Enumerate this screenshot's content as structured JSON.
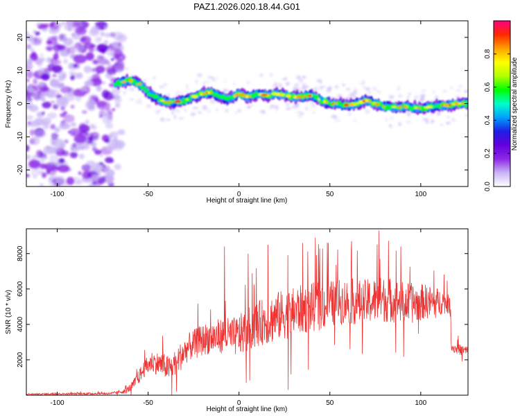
{
  "title": "PAZ1.2026.020.18.44.G01",
  "chart_data": [
    {
      "type": "heatmap",
      "name": "spectrogram",
      "xlabel": "Height of straight line (km)",
      "ylabel": "Frequency (Hz)",
      "xlim": [
        -117,
        126
      ],
      "ylim": [
        -25,
        25
      ],
      "x_ticks": [
        -100,
        -50,
        0,
        50,
        100
      ],
      "y_ticks": [
        -20,
        -10,
        0,
        10,
        20
      ],
      "ridge": {
        "x": [
          -68,
          -60,
          -55,
          -50,
          -45,
          -40,
          -35,
          -30,
          -25,
          -20,
          -15,
          -10,
          -5,
          0,
          5,
          10,
          15,
          20,
          25,
          30,
          35,
          40,
          45,
          50,
          55,
          60,
          65,
          70,
          75,
          80,
          85,
          90,
          95,
          100,
          105,
          110,
          115,
          120,
          126
        ],
        "freq_hz": [
          6,
          7,
          6,
          3.5,
          1.5,
          0.5,
          0.5,
          1,
          2,
          3,
          3.5,
          2,
          1.5,
          3,
          2,
          3,
          2.5,
          3,
          2.5,
          2,
          2,
          2.5,
          1,
          0,
          0,
          -0.5,
          0,
          1,
          0,
          -1,
          -1,
          -1,
          -1,
          -1.5,
          -1,
          -0.5,
          -0.5,
          0,
          0
        ]
      },
      "noise_region_x": [
        -117,
        -64
      ],
      "colorbar": {
        "label": "Normalized spectral amplitude",
        "range": [
          0,
          1
        ],
        "ticks": [
          "0.0",
          "0.2",
          "0.4",
          "0.6",
          "0.8"
        ],
        "colors": [
          "#ffffff",
          "#c8b4f5",
          "#8c28e6",
          "#6400dc",
          "#1e1ee6",
          "#00a0ff",
          "#00ffc8",
          "#00ff00",
          "#b4ff00",
          "#ffff00",
          "#ffa000",
          "#ff2800",
          "#ff0080"
        ]
      }
    },
    {
      "type": "line",
      "name": "snr",
      "xlabel": "Height of straight line (km)",
      "ylabel": "SNR (10 * v/v)",
      "xlim": [
        -117,
        126
      ],
      "ylim": [
        0,
        9400
      ],
      "x_ticks": [
        -100,
        -50,
        0,
        50,
        100
      ],
      "y_ticks": [
        2000,
        4000,
        6000,
        8000
      ],
      "color": "#ee3333",
      "envelope": {
        "x": [
          -117,
          -70,
          -62,
          -58,
          -52,
          -48,
          -42,
          -38,
          -32,
          -28,
          -22,
          -18,
          -12,
          -8,
          -2,
          2,
          8,
          12,
          18,
          22,
          28,
          32,
          38,
          42,
          48,
          52,
          58,
          62,
          68,
          72,
          78,
          82,
          88,
          92,
          98,
          102,
          108,
          112,
          116,
          117,
          120,
          126
        ],
        "mean": [
          60,
          100,
          250,
          600,
          1500,
          1900,
          1700,
          1500,
          2200,
          2700,
          3000,
          3200,
          3300,
          3400,
          3300,
          3500,
          3900,
          4100,
          4300,
          4500,
          4600,
          4800,
          4900,
          5000,
          5100,
          5200,
          5300,
          5300,
          5200,
          5300,
          5400,
          5400,
          5300,
          5200,
          5200,
          5300,
          5200,
          5300,
          5100,
          2700,
          2600,
          2500
        ],
        "spread": [
          40,
          60,
          150,
          300,
          500,
          600,
          700,
          700,
          800,
          800,
          900,
          900,
          1000,
          1000,
          1100,
          1200,
          1300,
          1300,
          1400,
          1400,
          1400,
          1400,
          1400,
          1400,
          1400,
          1300,
          1300,
          1300,
          1300,
          1300,
          1300,
          1300,
          1200,
          1200,
          1100,
          1000,
          900,
          700,
          500,
          300,
          300,
          300
        ]
      },
      "spikes": [
        {
          "x": -8,
          "y": 8400
        },
        {
          "x": 5,
          "y": 8000
        },
        {
          "x": 16,
          "y": 8500
        },
        {
          "x": 27,
          "y": 300
        },
        {
          "x": 35,
          "y": 8600
        },
        {
          "x": 42,
          "y": 8900
        },
        {
          "x": 62,
          "y": 8700
        },
        {
          "x": 77,
          "y": 9300
        },
        {
          "x": 89,
          "y": 8400
        }
      ]
    }
  ]
}
